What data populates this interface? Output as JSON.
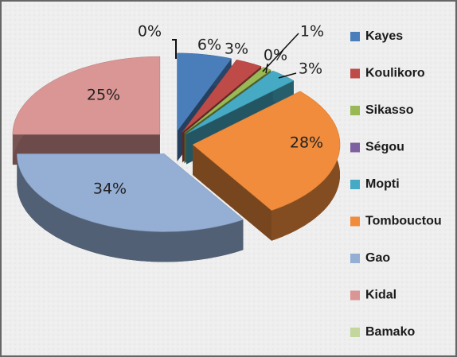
{
  "chart_data": {
    "type": "pie",
    "categories": [
      "Kayes",
      "Koulikoro",
      "Sikasso",
      "Ségou",
      "Mopti",
      "Tombouctou",
      "Gao",
      "Kidal",
      "Bamako"
    ],
    "values": [
      6,
      3,
      1,
      0,
      3,
      28,
      34,
      25,
      0
    ],
    "value_labels": [
      "6%",
      "3%",
      "1%",
      "0%",
      "3%",
      "28%",
      "34%",
      "25%",
      "0%"
    ],
    "colors": [
      "#4a7ebb",
      "#be4b48",
      "#98b954",
      "#7d60a0",
      "#46aac5",
      "#f08c3c",
      "#94aed4",
      "#d99694",
      "#c3d69b"
    ],
    "legend": "right"
  }
}
